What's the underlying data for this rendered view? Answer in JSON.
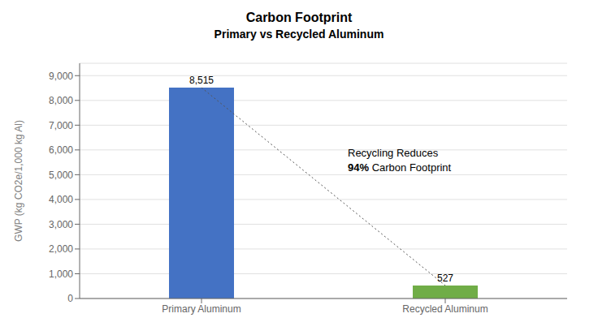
{
  "chart_data": {
    "type": "bar",
    "title": "Carbon Footprint",
    "subtitle": "Primary vs Recycled Aluminum",
    "categories": [
      "Primary Aluminum",
      "Recycled Aluminum"
    ],
    "values": [
      8515,
      527
    ],
    "value_labels": [
      "8,515",
      "527"
    ],
    "data_labels": true,
    "colors": [
      "#4472C4",
      "#70AD47"
    ],
    "y_label": "GWP (kg CO2e/1,000 kg Al)",
    "ylim": [
      0,
      9500
    ],
    "yticks": [
      0,
      {
        "value": 1000,
        "label": "1,000"
      },
      {
        "value": 2000,
        "label": "2,000"
      },
      {
        "value": 3000,
        "label": "3,000"
      },
      {
        "value": 4000,
        "label": "4,000"
      },
      {
        "value": 5000,
        "label": "5,000"
      },
      {
        "value": 6000,
        "label": "6,000"
      },
      {
        "value": 7000,
        "label": "7,000"
      },
      {
        "value": 8000,
        "label": "8,000"
      },
      {
        "value": 9000,
        "label": "9,000"
      }
    ],
    "grid": true,
    "annotations": [
      "Recycling Reduces",
      "94% Carbon Footprint"
    ]
  }
}
